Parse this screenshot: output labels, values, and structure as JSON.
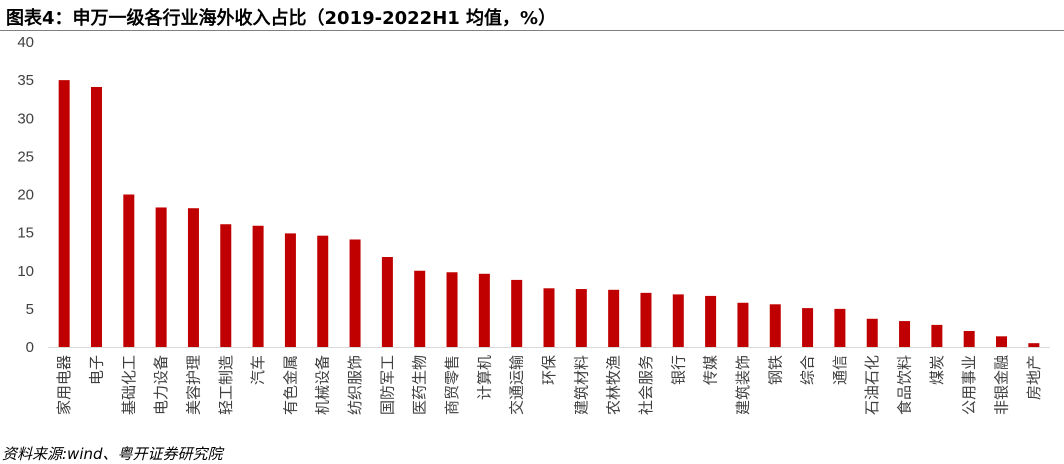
{
  "title": "图表4：申万一级各行业海外收入占比（2019-2022H1 均值，%）",
  "source": "资料来源:wind、粤开证券研究院",
  "chart_data": {
    "type": "bar",
    "categories": [
      "家用电器",
      "电子",
      "基础化工",
      "电力设备",
      "美容护理",
      "轻工制造",
      "汽车",
      "有色金属",
      "机械设备",
      "纺织服饰",
      "国防军工",
      "医药生物",
      "商贸零售",
      "计算机",
      "交通运输",
      "环保",
      "建筑材料",
      "农林牧渔",
      "社会服务",
      "银行",
      "传媒",
      "建筑装饰",
      "钢铁",
      "综合",
      "通信",
      "石油石化",
      "食品饮料",
      "煤炭",
      "公用事业",
      "非银金融",
      "房地产"
    ],
    "values": [
      35.0,
      34.1,
      20.0,
      18.3,
      18.2,
      16.1,
      15.9,
      14.9,
      14.6,
      14.1,
      11.8,
      10.0,
      9.8,
      9.6,
      8.8,
      7.7,
      7.6,
      7.5,
      7.1,
      6.9,
      6.7,
      5.8,
      5.6,
      5.1,
      5.0,
      3.7,
      3.4,
      2.9,
      2.1,
      1.4,
      0.5
    ],
    "yticks": [
      0,
      5,
      10,
      15,
      20,
      25,
      30,
      35,
      40
    ],
    "ylim": [
      0,
      40
    ],
    "bar_color": "#c00000",
    "grid": false,
    "legend": false
  }
}
